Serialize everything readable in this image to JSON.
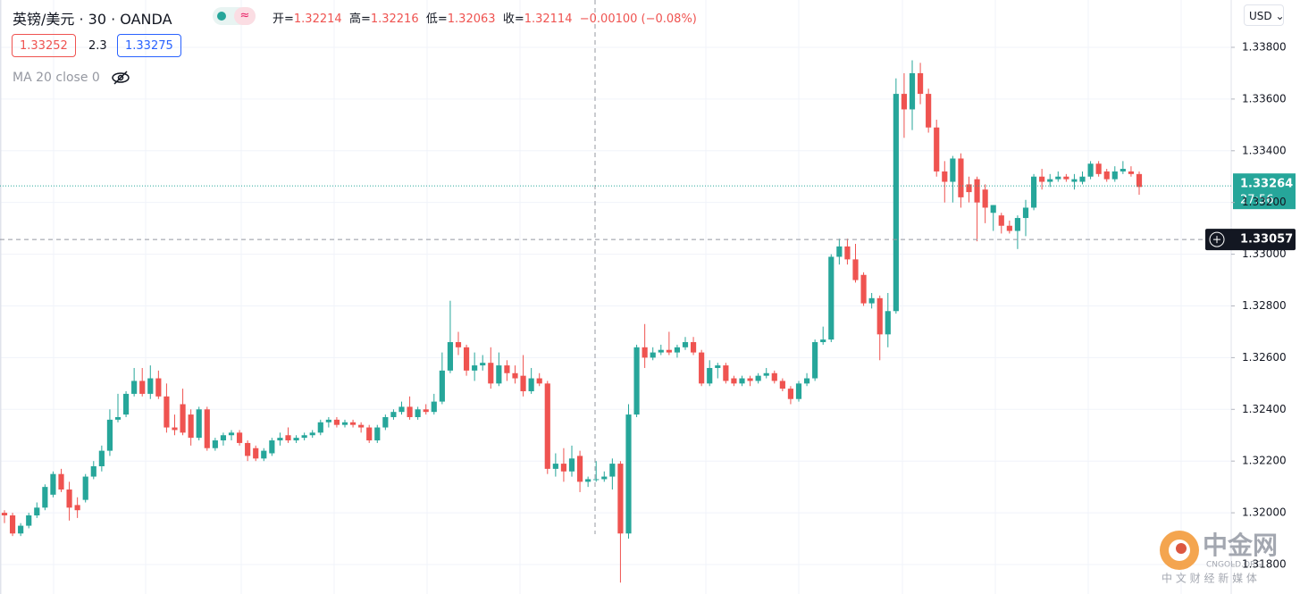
{
  "header": {
    "symbol": "英镑/美元",
    "interval": "30",
    "source": "OANDA",
    "open_label": "开=",
    "open": 1.32214,
    "high_label": "高=",
    "high": 1.32216,
    "low_label": "低=",
    "low": 1.32063,
    "close_label": "收=",
    "close": 1.32114,
    "change": "−0.00100",
    "change_pct": "(−0.08%)",
    "bid": 1.33252,
    "spread": 2.3,
    "ask": 1.33275,
    "indicator": "MA 20 close 0",
    "currency": "USD"
  },
  "watermark": {
    "name": "中金网",
    "site": "CNGOLD.ORG",
    "slogan": "中 文 财 经 新 媒 体"
  },
  "chart_data": {
    "type": "candlestick",
    "up_color": "#26a69a",
    "down_color": "#ef5350",
    "ylim": [
      1.31686,
      1.33983
    ],
    "yticks": [
      {
        "value": 1.318,
        "label": "1.31800"
      },
      {
        "value": 1.32,
        "label": "1.32000"
      },
      {
        "value": 1.322,
        "label": "1.32200"
      },
      {
        "value": 1.324,
        "label": "1.32400"
      },
      {
        "value": 1.326,
        "label": "1.32600"
      },
      {
        "value": 1.328,
        "label": "1.32800"
      },
      {
        "value": 1.33,
        "label": "1.33000"
      },
      {
        "value": 1.332,
        "label": "1.33200"
      },
      {
        "value": 1.334,
        "label": "1.33400"
      },
      {
        "value": 1.336,
        "label": "1.33600"
      },
      {
        "value": 1.338,
        "label": "1.33800"
      }
    ],
    "grid": true,
    "last_price": 1.33264,
    "countdown": "27:56",
    "crosshair_price": 1.33057,
    "open": [
      1.32,
      1.3199,
      1.3192,
      1.3195,
      1.3199,
      1.3202,
      1.3207,
      1.3215,
      1.3209,
      1.3203,
      1.3205,
      1.3214,
      1.3218,
      1.3224,
      1.3236,
      1.3238,
      1.3246,
      1.3251,
      1.3246,
      1.3252,
      1.3245,
      1.3233,
      1.3242,
      1.3238,
      1.3229,
      1.324,
      1.3225,
      1.3228,
      1.323,
      1.3231,
      1.3227,
      1.3225,
      1.3221,
      1.3223,
      1.3228,
      1.323,
      1.3228,
      1.3229,
      1.323,
      1.3231,
      1.3235,
      1.3236,
      1.3234,
      1.3235,
      1.3234,
      1.3233,
      1.3228,
      1.3233,
      1.3237,
      1.3239,
      1.3241,
      1.3237,
      1.324,
      1.3239,
      1.3243,
      1.3255,
      1.3266,
      1.3264,
      1.3255,
      1.3257,
      1.3258,
      1.325,
      1.3257,
      1.3254,
      1.3253,
      1.3247,
      1.3252,
      1.325,
      1.3217,
      1.3219,
      1.3216,
      1.3222,
      1.3212,
      1.3213,
      1.3213,
      1.3214,
      1.3219,
      1.3192,
      1.3238,
      1.3264,
      1.326,
      1.3262,
      1.3263,
      1.3262,
      1.3264,
      1.3266,
      1.3262,
      1.325,
      1.3256,
      1.3257,
      1.3252,
      1.325,
      1.3252,
      1.3251,
      1.3253,
      1.3254,
      1.3251,
      1.3248,
      1.3244,
      1.325,
      1.3252,
      1.3266,
      1.3267,
      1.3299,
      1.3303,
      1.3298,
      1.3292,
      1.3281,
      1.3283,
      1.3269,
      1.3278,
      1.3362,
      1.3356,
      1.337,
      1.3362,
      1.3349,
      1.3332,
      1.3328,
      1.3337,
      1.3327,
      1.3329,
      1.3325,
      1.3316,
      1.3315,
      1.3311,
      1.3309,
      1.3314,
      1.3318,
      1.333,
      1.3328,
      1.3329,
      1.333,
      1.3328,
      1.3328,
      1.333,
      1.3335,
      1.3332,
      1.3329,
      1.3332,
      1.3332,
      1.3331
    ],
    "high": [
      1.3201,
      1.32,
      1.3196,
      1.32,
      1.3204,
      1.3211,
      1.3216,
      1.3217,
      1.3212,
      1.3206,
      1.3215,
      1.322,
      1.3226,
      1.324,
      1.3246,
      1.3247,
      1.3256,
      1.3256,
      1.3257,
      1.3255,
      1.325,
      1.3238,
      1.3248,
      1.324,
      1.3241,
      1.3241,
      1.3229,
      1.3231,
      1.3232,
      1.3232,
      1.3228,
      1.3226,
      1.3225,
      1.3229,
      1.3231,
      1.3233,
      1.323,
      1.3231,
      1.3232,
      1.3236,
      1.3237,
      1.3237,
      1.3236,
      1.3236,
      1.3235,
      1.3234,
      1.3234,
      1.3238,
      1.324,
      1.3243,
      1.3245,
      1.3241,
      1.3242,
      1.3246,
      1.3262,
      1.3282,
      1.327,
      1.3265,
      1.3262,
      1.3261,
      1.3264,
      1.3262,
      1.3259,
      1.3257,
      1.3261,
      1.3256,
      1.3254,
      1.3251,
      1.3223,
      1.3225,
      1.3226,
      1.3224,
      1.3214,
      1.322,
      1.3216,
      1.3221,
      1.322,
      1.3242,
      1.3265,
      1.3273,
      1.3264,
      1.3265,
      1.327,
      1.3265,
      1.3268,
      1.3268,
      1.3263,
      1.3259,
      1.3258,
      1.3258,
      1.3253,
      1.3253,
      1.3253,
      1.3254,
      1.3256,
      1.3255,
      1.3252,
      1.3249,
      1.3251,
      1.3254,
      1.3267,
      1.3272,
      1.33,
      1.3306,
      1.3306,
      1.3304,
      1.3293,
      1.3285,
      1.3284,
      1.3285,
      1.3368,
      1.337,
      1.3375,
      1.3374,
      1.3364,
      1.3352,
      1.3336,
      1.3338,
      1.3339,
      1.333,
      1.333,
      1.3327,
      1.3319,
      1.3316,
      1.3313,
      1.3315,
      1.3321,
      1.3331,
      1.3333,
      1.3331,
      1.3332,
      1.3331,
      1.3331,
      1.3332,
      1.3336,
      1.3336,
      1.3333,
      1.3334,
      1.3336,
      1.3334,
      1.3332
    ],
    "low": [
      1.3196,
      1.3191,
      1.3191,
      1.3194,
      1.3198,
      1.3201,
      1.3206,
      1.3208,
      1.3197,
      1.3198,
      1.3204,
      1.3213,
      1.3216,
      1.3222,
      1.3235,
      1.3237,
      1.3245,
      1.3245,
      1.3244,
      1.3244,
      1.3231,
      1.323,
      1.323,
      1.3226,
      1.3228,
      1.3224,
      1.3224,
      1.3226,
      1.3228,
      1.3226,
      1.322,
      1.322,
      1.322,
      1.3222,
      1.3226,
      1.3227,
      1.3227,
      1.3228,
      1.3229,
      1.323,
      1.3233,
      1.3233,
      1.3233,
      1.3233,
      1.3231,
      1.3227,
      1.3227,
      1.3232,
      1.3236,
      1.3238,
      1.3236,
      1.3236,
      1.3238,
      1.3238,
      1.3242,
      1.3254,
      1.3261,
      1.3253,
      1.3251,
      1.3255,
      1.3248,
      1.3249,
      1.3251,
      1.325,
      1.3245,
      1.3246,
      1.3249,
      1.3215,
      1.3214,
      1.3212,
      1.3214,
      1.3208,
      1.321,
      1.3212,
      1.3212,
      1.3209,
      1.3173,
      1.319,
      1.3237,
      1.3256,
      1.3259,
      1.3261,
      1.3261,
      1.326,
      1.3263,
      1.3261,
      1.3249,
      1.3249,
      1.3252,
      1.325,
      1.3249,
      1.3249,
      1.3249,
      1.325,
      1.3252,
      1.325,
      1.3247,
      1.3242,
      1.3243,
      1.3249,
      1.3251,
      1.3265,
      1.3266,
      1.3296,
      1.3296,
      1.3289,
      1.328,
      1.3279,
      1.3259,
      1.3264,
      1.3277,
      1.3345,
      1.3348,
      1.3358,
      1.3347,
      1.333,
      1.332,
      1.332,
      1.3318,
      1.332,
      1.3305,
      1.3312,
      1.3309,
      1.3308,
      1.3308,
      1.3302,
      1.3307,
      1.3317,
      1.3325,
      1.3326,
      1.3328,
      1.3328,
      1.3325,
      1.3327,
      1.3329,
      1.333,
      1.3328,
      1.3328,
      1.3331,
      1.333,
      1.3323
    ],
    "close": [
      1.3199,
      1.3192,
      1.3195,
      1.3199,
      1.3202,
      1.321,
      1.3215,
      1.3209,
      1.3202,
      1.3201,
      1.3214,
      1.3218,
      1.3224,
      1.3236,
      1.3237,
      1.3246,
      1.3251,
      1.3246,
      1.3252,
      1.3245,
      1.3233,
      1.3232,
      1.3231,
      1.3229,
      1.324,
      1.3225,
      1.3228,
      1.323,
      1.3231,
      1.3227,
      1.3222,
      1.3221,
      1.3224,
      1.3228,
      1.3229,
      1.3228,
      1.3229,
      1.323,
      1.3231,
      1.3235,
      1.3236,
      1.3234,
      1.3235,
      1.3234,
      1.3233,
      1.3228,
      1.3233,
      1.3237,
      1.3239,
      1.3241,
      1.3237,
      1.324,
      1.3239,
      1.3243,
      1.3255,
      1.3266,
      1.3264,
      1.3255,
      1.3257,
      1.3258,
      1.325,
      1.3257,
      1.3254,
      1.3252,
      1.3247,
      1.3252,
      1.325,
      1.3217,
      1.3219,
      1.3216,
      1.3221,
      1.3212,
      1.3213,
      1.3213,
      1.3214,
      1.3219,
      1.3192,
      1.3238,
      1.3264,
      1.326,
      1.3262,
      1.3263,
      1.3262,
      1.3264,
      1.3266,
      1.3262,
      1.325,
      1.3256,
      1.3257,
      1.3251,
      1.325,
      1.3252,
      1.3251,
      1.3253,
      1.3254,
      1.3251,
      1.3248,
      1.3244,
      1.325,
      1.3252,
      1.3266,
      1.3267,
      1.3299,
      1.3303,
      1.3298,
      1.329,
      1.3281,
      1.3283,
      1.3269,
      1.3278,
      1.3362,
      1.3356,
      1.337,
      1.3362,
      1.3349,
      1.3332,
      1.3328,
      1.3337,
      1.3322,
      1.3324,
      1.332,
      1.3318,
      1.3319,
      1.3311,
      1.3309,
      1.3314,
      1.3318,
      1.333,
      1.3328,
      1.3329,
      1.333,
      1.3329,
      1.3329,
      1.333,
      1.3335,
      1.3331,
      1.3329,
      1.3332,
      1.3333,
      1.3331,
      1.3326
    ]
  }
}
